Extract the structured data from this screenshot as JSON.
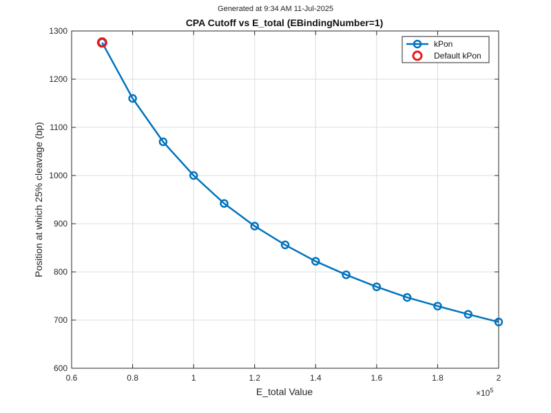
{
  "header": {
    "generated_text": "Generated at  9:34 AM 11-Jul-2025"
  },
  "chart_data": {
    "type": "line",
    "title": "CPA Cutoff vs E_total (EBindingNumber=1)",
    "xlabel": "E_total Value",
    "ylabel": "Position at which 25% cleavage (bp)",
    "x_exponent_label": "×10",
    "x_exponent_power": "5",
    "xlim": [
      0.6,
      2.0
    ],
    "ylim": [
      600,
      1300
    ],
    "x_ticks": [
      0.6,
      0.8,
      1.0,
      1.2,
      1.4,
      1.6,
      1.8,
      2.0
    ],
    "x_tick_labels": [
      "0.6",
      "0.8",
      "1",
      "1.2",
      "1.4",
      "1.6",
      "1.8",
      "2"
    ],
    "y_ticks": [
      600,
      700,
      800,
      900,
      1000,
      1100,
      1200,
      1300
    ],
    "y_tick_labels": [
      "600",
      "700",
      "800",
      "900",
      "1000",
      "1100",
      "1200",
      "1300"
    ],
    "grid": true,
    "legend_position": "top-right",
    "series": [
      {
        "name": "kPon",
        "color": "#0072BD",
        "marker": "circle",
        "x": [
          0.7,
          0.8,
          0.9,
          1.0,
          1.1,
          1.2,
          1.3,
          1.4,
          1.5,
          1.6,
          1.7,
          1.8,
          1.9,
          2.0
        ],
        "y": [
          1276,
          1160,
          1070,
          1000,
          942,
          895,
          856,
          822,
          794,
          769,
          747,
          729,
          712,
          696
        ]
      },
      {
        "name": "Default kPon",
        "color": "#E8191C",
        "marker": "circle",
        "line": false,
        "x": [
          0.7
        ],
        "y": [
          1276
        ]
      }
    ]
  }
}
